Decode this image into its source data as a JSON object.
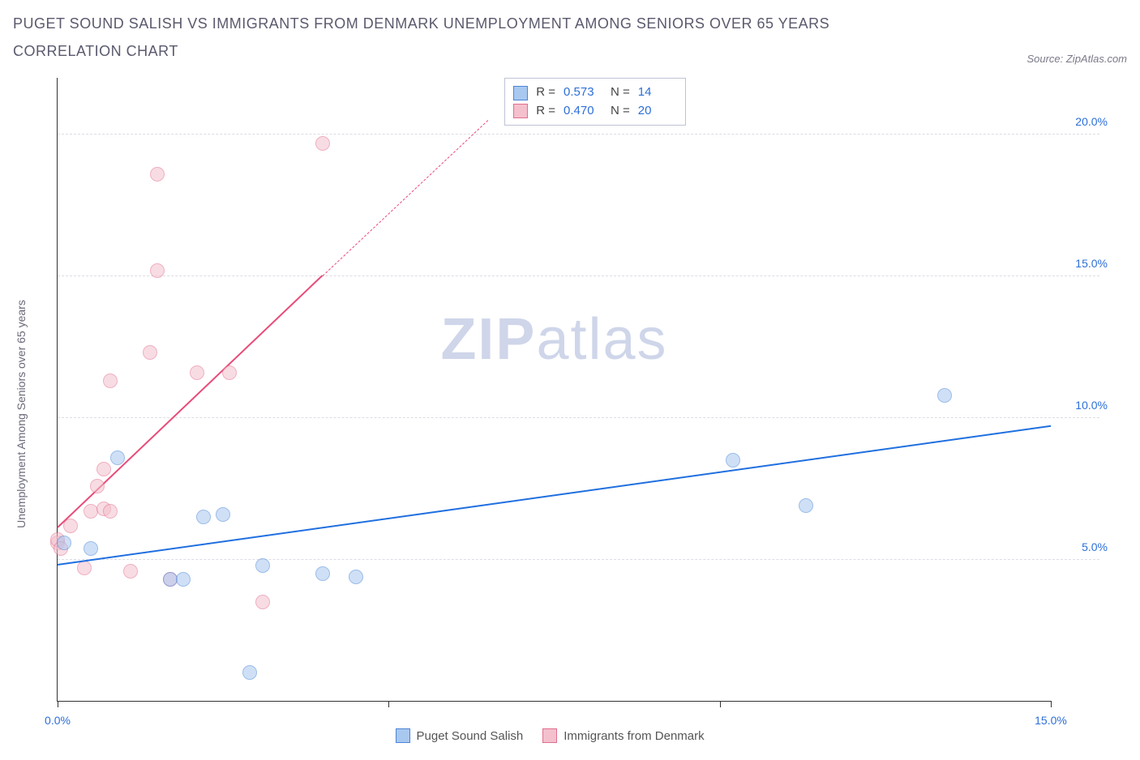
{
  "title": "PUGET SOUND SALISH VS IMMIGRANTS FROM DENMARK UNEMPLOYMENT AMONG SENIORS OVER 65 YEARS CORRELATION CHART",
  "source": "Source: ZipAtlas.com",
  "y_axis_label": "Unemployment Among Seniors over 65 years",
  "watermark_bold": "ZIP",
  "watermark_rest": "atlas",
  "chart": {
    "type": "scatter",
    "xlim": [
      0,
      15
    ],
    "ylim": [
      0,
      22
    ],
    "x_ticks": [
      0.0,
      5.0,
      10.0,
      15.0
    ],
    "x_tick_labels": [
      "0.0%",
      "",
      "",
      "15.0%"
    ],
    "y_ticks": [
      5.0,
      10.0,
      15.0,
      20.0
    ],
    "y_tick_labels": [
      "5.0%",
      "10.0%",
      "15.0%",
      "20.0%"
    ],
    "grid_color": "#dcdce4",
    "axis_color": "#333333",
    "tick_label_color": "#2d6fd8",
    "background_color": "#ffffff",
    "marker_radius": 9,
    "marker_opacity": 0.55,
    "series": [
      {
        "name": "Puget Sound Salish",
        "color_fill": "#a9c8f0",
        "color_stroke": "#4b86d8",
        "R": "0.573",
        "N": "14",
        "trend": {
          "x1": 0,
          "y1": 4.8,
          "x2": 15,
          "y2": 9.7,
          "color": "#1f6fe0",
          "width": 2
        },
        "points": [
          {
            "x": 0.1,
            "y": 5.6
          },
          {
            "x": 0.5,
            "y": 5.4
          },
          {
            "x": 0.9,
            "y": 8.6
          },
          {
            "x": 1.7,
            "y": 4.3
          },
          {
            "x": 1.9,
            "y": 4.3
          },
          {
            "x": 2.2,
            "y": 6.5
          },
          {
            "x": 2.5,
            "y": 6.6
          },
          {
            "x": 2.9,
            "y": 1.0
          },
          {
            "x": 3.1,
            "y": 4.8
          },
          {
            "x": 4.0,
            "y": 4.5
          },
          {
            "x": 4.5,
            "y": 4.4
          },
          {
            "x": 10.2,
            "y": 8.5
          },
          {
            "x": 11.3,
            "y": 6.9
          },
          {
            "x": 13.4,
            "y": 10.8
          }
        ]
      },
      {
        "name": "Immigrants from Denmark",
        "color_fill": "#f4c0cd",
        "color_stroke": "#e26f8f",
        "R": "0.470",
        "N": "20",
        "trend": {
          "x1": 0,
          "y1": 6.1,
          "x2": 4.0,
          "y2": 15.0,
          "color": "#e84b79",
          "width": 2,
          "dash_to_x": 6.5,
          "dash_to_y": 20.5
        },
        "points": [
          {
            "x": 0.0,
            "y": 5.6
          },
          {
            "x": 0.0,
            "y": 5.7
          },
          {
            "x": 0.05,
            "y": 5.4
          },
          {
            "x": 0.2,
            "y": 6.2
          },
          {
            "x": 0.4,
            "y": 4.7
          },
          {
            "x": 0.5,
            "y": 6.7
          },
          {
            "x": 0.6,
            "y": 7.6
          },
          {
            "x": 0.7,
            "y": 6.8
          },
          {
            "x": 0.7,
            "y": 8.2
          },
          {
            "x": 0.8,
            "y": 6.7
          },
          {
            "x": 0.8,
            "y": 11.3
          },
          {
            "x": 1.1,
            "y": 4.6
          },
          {
            "x": 1.4,
            "y": 12.3
          },
          {
            "x": 1.5,
            "y": 15.2
          },
          {
            "x": 1.5,
            "y": 18.6
          },
          {
            "x": 1.7,
            "y": 4.3
          },
          {
            "x": 2.1,
            "y": 11.6
          },
          {
            "x": 2.6,
            "y": 11.6
          },
          {
            "x": 3.1,
            "y": 3.5
          },
          {
            "x": 4.0,
            "y": 19.7
          }
        ]
      }
    ]
  },
  "legend_labels": {
    "R_prefix": "R =",
    "N_prefix": "N ="
  }
}
